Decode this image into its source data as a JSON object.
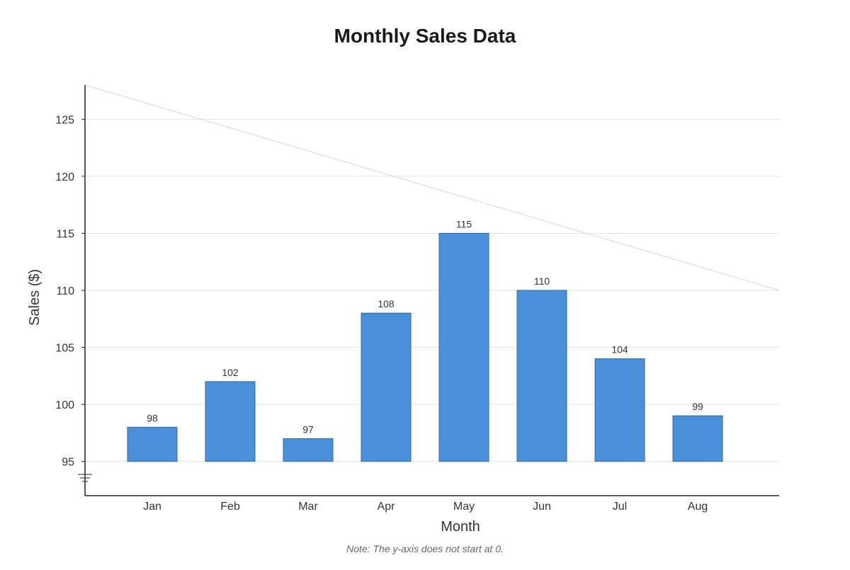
{
  "chart_data": {
    "type": "bar",
    "title": "Monthly Sales Data",
    "xlabel": "Month",
    "ylabel": "Sales ($)",
    "categories": [
      "Jan",
      "Feb",
      "Mar",
      "Apr",
      "May",
      "Jun",
      "Jul",
      "Aug"
    ],
    "values": [
      98,
      102,
      97,
      108,
      115,
      110,
      104,
      99
    ],
    "data_labels": [
      "98",
      "102",
      "97",
      "108",
      "115",
      "110",
      "104",
      "99"
    ],
    "y_ticks": [
      95,
      100,
      105,
      110,
      115,
      120,
      125
    ],
    "y_tick_labels": [
      "95",
      "100",
      "105",
      "110",
      "115",
      "120",
      "125"
    ],
    "ylim": [
      92,
      128
    ],
    "y_axis_break": true,
    "grid": true,
    "trend_line": {
      "start_value": 128,
      "end_value": 110
    },
    "note": "Note: The y-axis does not start at 0.",
    "colors": {
      "bar_fill": "#4a90d9",
      "bar_stroke": "#2f6aa3",
      "grid": "#e3e3e3",
      "axis": "#222222",
      "trend": "#d6d6d6"
    }
  }
}
